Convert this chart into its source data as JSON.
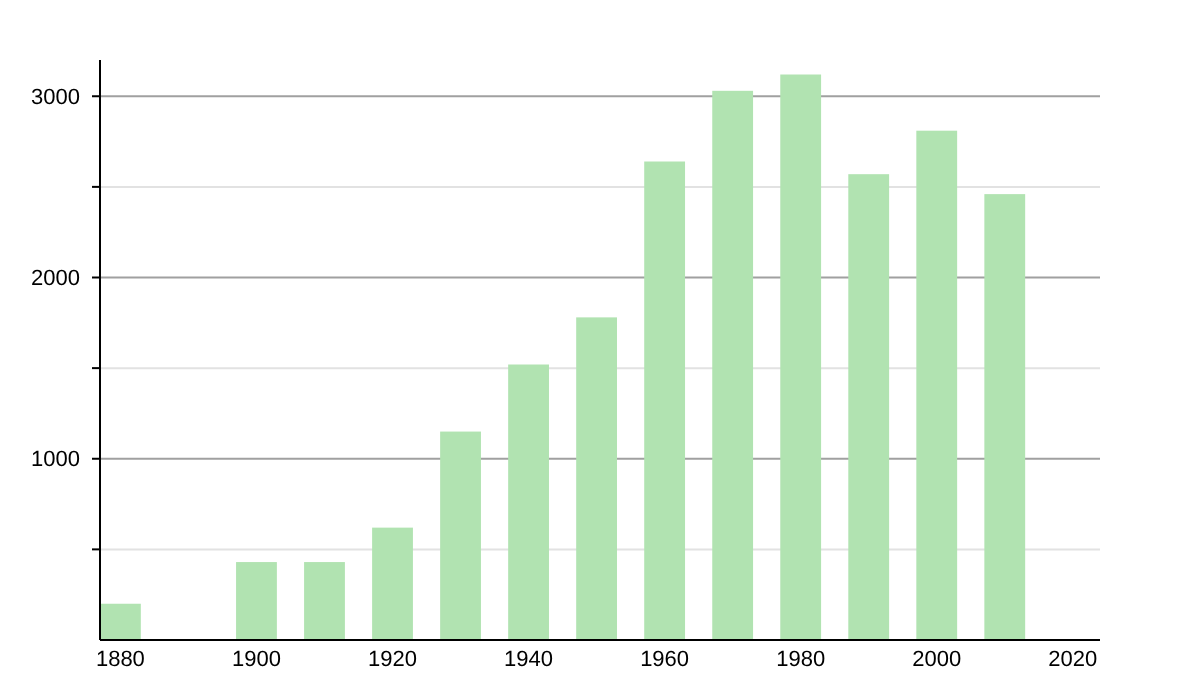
{
  "chart_data": {
    "type": "bar",
    "x": [
      1880,
      1900,
      1910,
      1920,
      1930,
      1940,
      1950,
      1960,
      1970,
      1980,
      1990,
      2000,
      2010
    ],
    "values": [
      200,
      430,
      430,
      620,
      1150,
      1520,
      1780,
      2640,
      3030,
      3120,
      2570,
      2810,
      2460
    ],
    "color": "#b1e3b1",
    "xlim": [
      1877,
      2024
    ],
    "xticks": [
      1880,
      1900,
      1920,
      1940,
      1960,
      1980,
      2000,
      2020
    ],
    "ylim": [
      0,
      3200
    ],
    "yticks": [
      {
        "value": 500,
        "label": null
      },
      1000,
      {
        "value": 1500,
        "label": null
      },
      2000,
      {
        "value": 2500,
        "label": null
      },
      3000
    ],
    "grid": "y"
  }
}
